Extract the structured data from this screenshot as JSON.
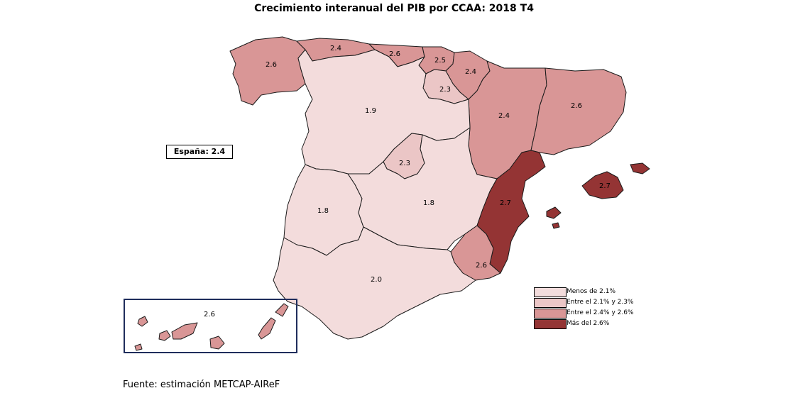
{
  "title": "Crecimiento interanual del PIB por CCAA: 2018 T4",
  "source": "Fuente: estimación METCAP-AIReF",
  "spain_total": "España:  2.4",
  "colors": {
    "c1": "#f3dcdc",
    "c2": "#ebc6c6",
    "c3": "#d99696",
    "c4": "#943434"
  },
  "legend": [
    {
      "label": "Menos de 2.1%",
      "color": "#f3dcdc"
    },
    {
      "label": "Entre el 2.1% y 2.3%",
      "color": "#ebc6c6"
    },
    {
      "label": "Entre el 2.4% y 2.6%",
      "color": "#d99696"
    },
    {
      "label": "Más del 2.6%",
      "color": "#943434"
    }
  ],
  "regions": [
    {
      "id": "galicia",
      "value": "2.6",
      "class": "c3"
    },
    {
      "id": "asturias",
      "value": "2.4",
      "class": "c3"
    },
    {
      "id": "cantabria",
      "value": "2.6",
      "class": "c3"
    },
    {
      "id": "pais-vasco",
      "value": "2.5",
      "class": "c3"
    },
    {
      "id": "navarra",
      "value": "2.4",
      "class": "c3"
    },
    {
      "id": "la-rioja",
      "value": "2.3",
      "class": "c2"
    },
    {
      "id": "aragon",
      "value": "2.4",
      "class": "c3"
    },
    {
      "id": "cataluna",
      "value": "2.6",
      "class": "c3"
    },
    {
      "id": "castilla-leon",
      "value": "1.9",
      "class": "c1"
    },
    {
      "id": "madrid",
      "value": "2.3",
      "class": "c2"
    },
    {
      "id": "castilla-la-mancha",
      "value": "1.8",
      "class": "c1"
    },
    {
      "id": "extremadura",
      "value": "1.8",
      "class": "c1"
    },
    {
      "id": "valencia",
      "value": "2.7",
      "class": "c4"
    },
    {
      "id": "baleares",
      "value": "2.7",
      "class": "c4"
    },
    {
      "id": "murcia",
      "value": "2.6",
      "class": "c3"
    },
    {
      "id": "andalucia",
      "value": "2.0",
      "class": "c1"
    },
    {
      "id": "canarias",
      "value": "2.6",
      "class": "c3"
    }
  ]
}
